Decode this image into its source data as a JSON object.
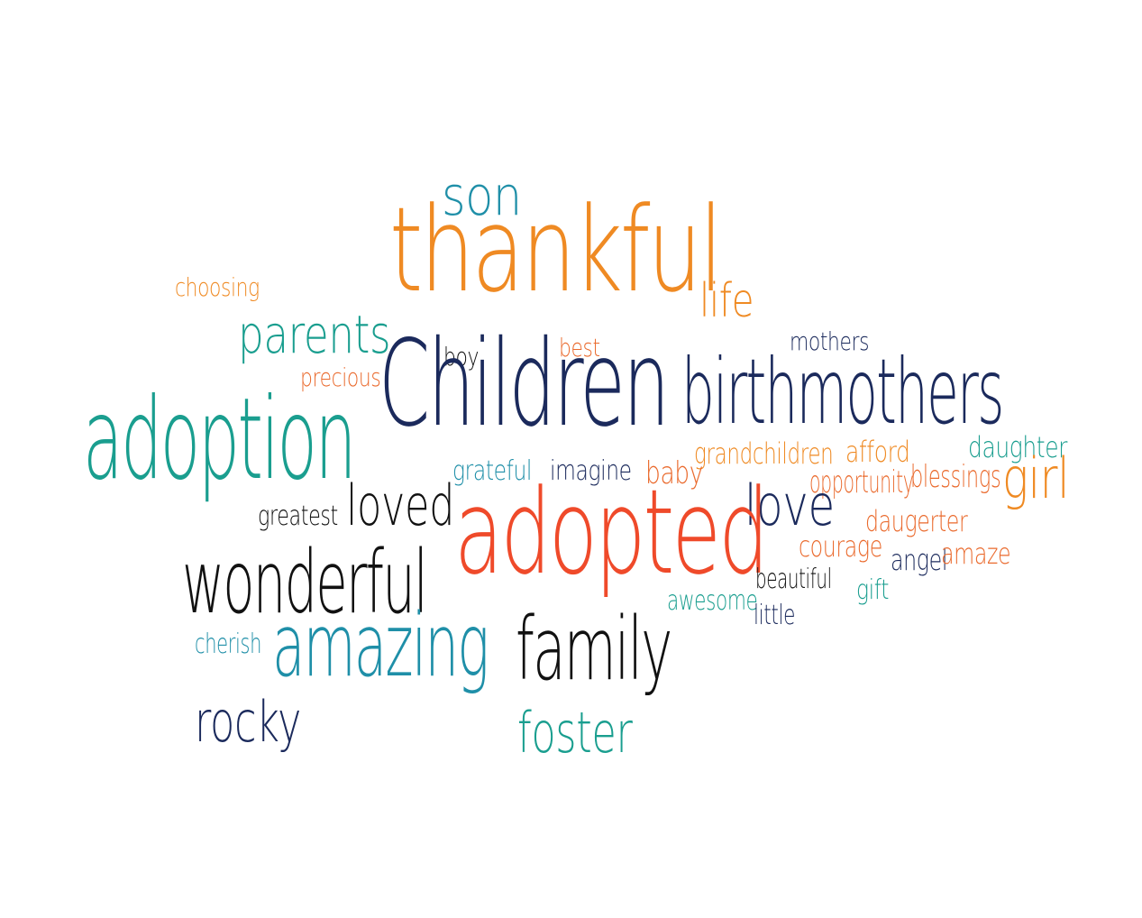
{
  "colors": {
    "orange": "#ef8a23",
    "teal": "#1a9e8f",
    "navy": "#1b2a5c",
    "red": "#ef4a2a",
    "black": "#111111",
    "blue_teal": "#1f8fa8",
    "orange_red": "#ea6a2d"
  },
  "words": {
    "son": {
      "text": "son",
      "color": "#1f8fa8"
    },
    "thankful": {
      "text": "thankful",
      "color": "#ef8a23"
    },
    "life": {
      "text": "life",
      "color": "#ef8a23"
    },
    "choosing": {
      "text": "choosing",
      "color": "#ef8a23"
    },
    "parents": {
      "text": "parents",
      "color": "#1a9e8f"
    },
    "precious": {
      "text": "precious",
      "color": "#ea6a2d"
    },
    "boy": {
      "text": "boy",
      "color": "#111111"
    },
    "best": {
      "text": "best",
      "color": "#ea6a2d"
    },
    "mothers": {
      "text": "mothers",
      "color": "#1b2a5c"
    },
    "children": {
      "text": "Children",
      "color": "#1b2a5c"
    },
    "birthmothers": {
      "text": "birthmothers",
      "color": "#1b2a5c"
    },
    "adoption": {
      "text": "adoption",
      "color": "#1a9e8f"
    },
    "grandchildren": {
      "text": "grandchildren",
      "color": "#ef8a23"
    },
    "afford": {
      "text": "afford",
      "color": "#ef8a23"
    },
    "daughter": {
      "text": "daughter",
      "color": "#1a9e8f"
    },
    "grateful": {
      "text": "grateful",
      "color": "#1f8fa8"
    },
    "imagine": {
      "text": "imagine",
      "color": "#1b2a5c"
    },
    "baby": {
      "text": "baby",
      "color": "#ea6a2d"
    },
    "opportunity": {
      "text": "opportunity",
      "color": "#ea6a2d"
    },
    "blessings": {
      "text": "blessings",
      "color": "#ea6a2d"
    },
    "girl": {
      "text": "girl",
      "color": "#ef8a23"
    },
    "greatest": {
      "text": "greatest",
      "color": "#111111"
    },
    "loved": {
      "text": "loved",
      "color": "#111111"
    },
    "love": {
      "text": "love",
      "color": "#1b2a5c"
    },
    "daugerter": {
      "text": "daugerter",
      "color": "#ea6a2d"
    },
    "adopted": {
      "text": "adopted",
      "color": "#ef4a2a"
    },
    "courage": {
      "text": "courage",
      "color": "#ea6a2d"
    },
    "angel": {
      "text": "angel",
      "color": "#1b2a5c"
    },
    "amaze": {
      "text": "amaze",
      "color": "#ea6a2d"
    },
    "wonderful": {
      "text": "wonderful",
      "color": "#111111"
    },
    "beautiful": {
      "text": "beautiful",
      "color": "#111111"
    },
    "gift": {
      "text": "gift",
      "color": "#1a9e8f"
    },
    "awesome": {
      "text": "awesome",
      "color": "#1a9e8f"
    },
    "little": {
      "text": "little",
      "color": "#1b2a5c"
    },
    "cherish": {
      "text": "cherish",
      "color": "#1f8fa8"
    },
    "amazing": {
      "text": "amazing",
      "color": "#1f8fa8"
    },
    "family": {
      "text": "family",
      "color": "#111111"
    },
    "rocky": {
      "text": "rocky",
      "color": "#1b2a5c"
    },
    "foster": {
      "text": "foster",
      "color": "#1a9e8f"
    }
  }
}
